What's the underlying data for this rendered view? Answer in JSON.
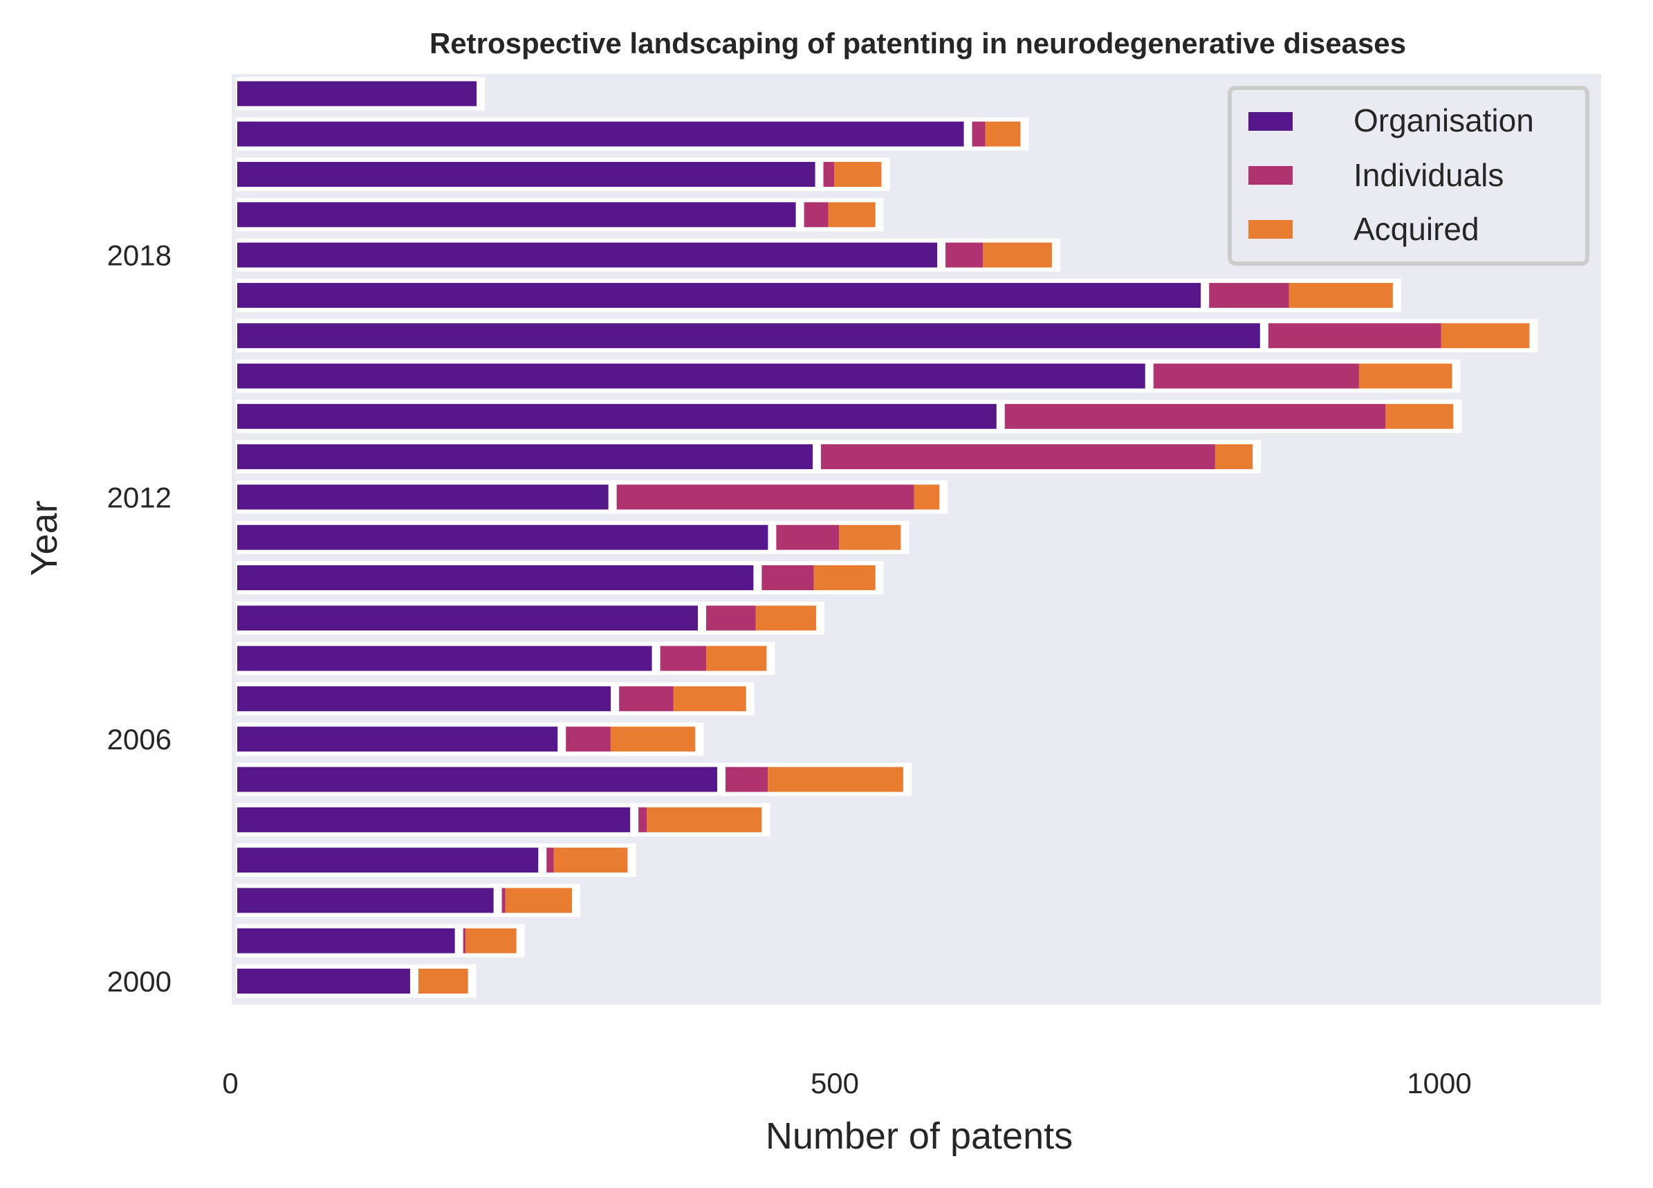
{
  "chart_data": {
    "type": "bar",
    "orientation": "horizontal",
    "stacked": true,
    "title": "Retrospective landscaping of patenting in neurodegenerative diseases",
    "xlabel": "Number of patents",
    "ylabel": "Year",
    "xlim": [
      0,
      1125
    ],
    "x_ticks": [
      0,
      500,
      1000
    ],
    "y_tick_labels": [
      "2000",
      "2006",
      "2012",
      "2018"
    ],
    "categories": [
      "2000",
      "2001",
      "2002",
      "2003",
      "2004",
      "2005",
      "2006",
      "2007",
      "2008",
      "2009",
      "2010",
      "2011",
      "2012",
      "2013",
      "2014",
      "2015",
      "2016",
      "2017",
      "2018",
      "2019",
      "2020",
      "2021",
      "2022"
    ],
    "series": [
      {
        "name": "Organisation",
        "color": "#56178a",
        "values": [
          143,
          180,
          212,
          249,
          325,
          397,
          265,
          309,
          343,
          381,
          427,
          439,
          307,
          476,
          628,
          751,
          846,
          797,
          579,
          462,
          478,
          601,
          198
        ]
      },
      {
        "name": "Individuals",
        "color": "#ae336f",
        "values": [
          0,
          2,
          3,
          6,
          7,
          35,
          37,
          45,
          38,
          41,
          43,
          52,
          246,
          326,
          315,
          170,
          143,
          66,
          31,
          20,
          9,
          11,
          0
        ]
      },
      {
        "name": "Acquired",
        "color": "#e87c30",
        "values": [
          41,
          42,
          55,
          61,
          95,
          112,
          70,
          60,
          50,
          50,
          51,
          51,
          21,
          31,
          56,
          77,
          73,
          86,
          57,
          39,
          39,
          29,
          0
        ]
      }
    ],
    "legend": {
      "position": "top-right",
      "entries": [
        "Organisation",
        "Individuals",
        "Acquired"
      ]
    },
    "grid": false,
    "background_color": "#eaeaf2"
  }
}
